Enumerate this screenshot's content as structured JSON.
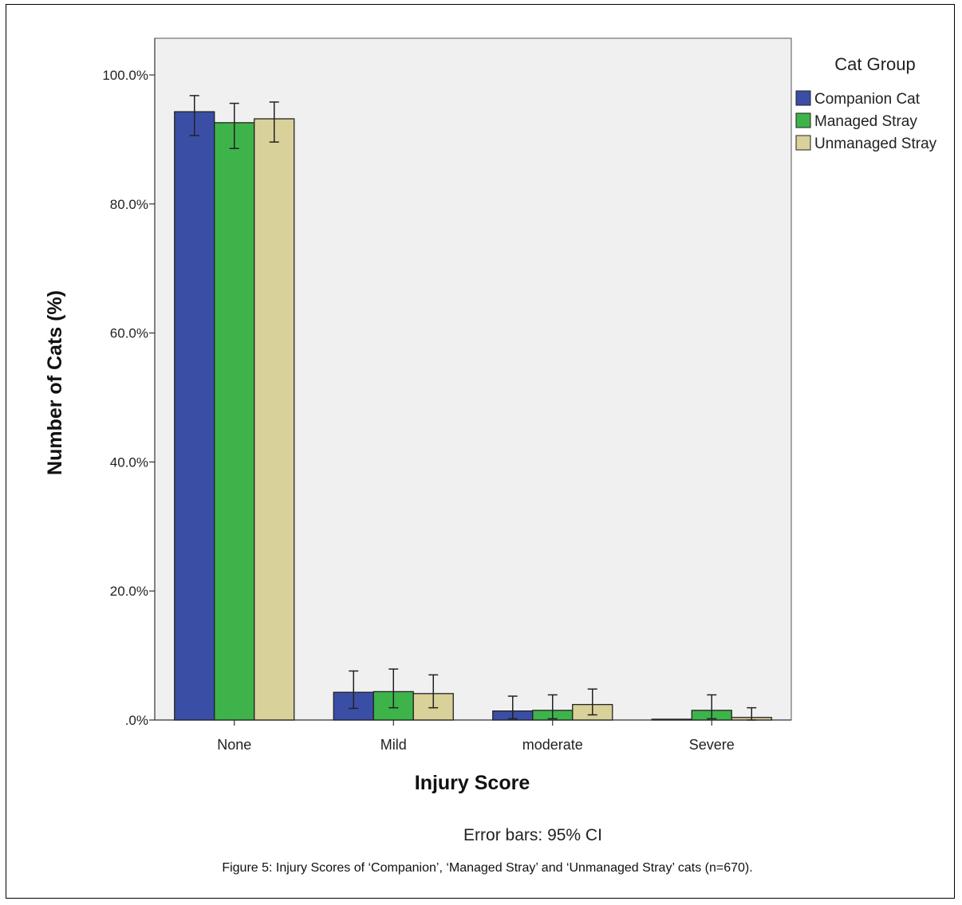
{
  "chart_data": {
    "type": "bar",
    "categories": [
      "None",
      "Mild",
      "moderate",
      "Severe"
    ],
    "series": [
      {
        "name": "Companion Cat",
        "color": "#3a4ea6",
        "values": [
          94.3,
          4.3,
          1.4,
          0.0
        ],
        "ci_low": [
          90.6,
          1.8,
          0.2,
          0.0
        ],
        "ci_high": [
          96.8,
          7.6,
          3.7,
          0.0
        ]
      },
      {
        "name": "Managed Stray",
        "color": "#3db34a",
        "values": [
          92.6,
          4.4,
          1.5,
          1.5
        ],
        "ci_low": [
          88.6,
          1.9,
          0.2,
          0.2
        ],
        "ci_high": [
          95.6,
          7.9,
          3.9,
          3.9
        ]
      },
      {
        "name": "Unmanaged Stray",
        "color": "#d9d19a",
        "values": [
          93.2,
          4.1,
          2.4,
          0.4
        ],
        "ci_low": [
          89.6,
          1.9,
          0.8,
          0.0
        ],
        "ci_high": [
          95.8,
          7.0,
          4.8,
          1.9
        ]
      }
    ],
    "ylim": [
      0,
      100
    ],
    "yticks": [
      0,
      20,
      40,
      60,
      80,
      100
    ],
    "ytick_labels": [
      ".0%",
      "20.0%",
      "40.0%",
      "60.0%",
      "80.0%",
      "100.0%"
    ],
    "xlabel": "Injury Score",
    "ylabel": "Number of Cats (%)",
    "legend_title": "Cat Group",
    "legend_position": "top-right",
    "grid": false,
    "footnote": "Error bars: 95% CI"
  },
  "caption": "Figure 5: Injury Scores of ‘Companion’, ‘Managed Stray’ and ‘Unmanaged Stray’ cats (n=670)."
}
